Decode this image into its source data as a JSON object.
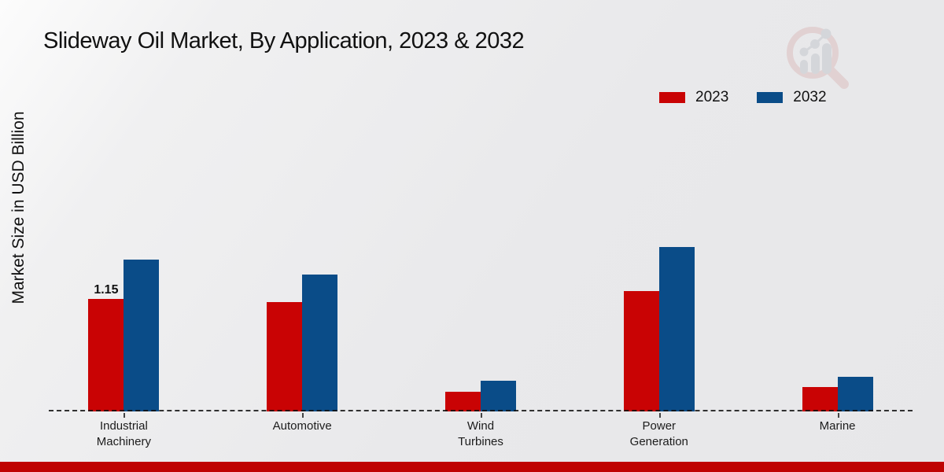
{
  "header": {
    "title": "Slideway Oil Market, By Application, 2023 & 2032"
  },
  "colors": {
    "series_2023": "#c90304",
    "series_2032": "#0a4c88",
    "footer_strip": "#bf0302",
    "axis_line": "#1a1a1a",
    "background": "#e9e9eb"
  },
  "watermark": {
    "icon": "magnifier-bar-chart-logo"
  },
  "chart_data": {
    "type": "bar",
    "title": "Slideway Oil Market, By Application, 2023 & 2032",
    "xlabel": "",
    "ylabel": "Market Size in USD Billion",
    "categories": [
      "Industrial Machinery",
      "Automotive",
      "Wind Turbines",
      "Power Generation",
      "Marine"
    ],
    "series": [
      {
        "name": "2023",
        "color": "#c90304",
        "values": [
          1.15,
          1.12,
          0.2,
          1.23,
          0.25
        ]
      },
      {
        "name": "2032",
        "color": "#0a4c88",
        "values": [
          1.55,
          1.4,
          0.31,
          1.68,
          0.35
        ]
      }
    ],
    "data_labels": [
      {
        "series": "2023",
        "category_index": 0,
        "text": "1.15"
      }
    ],
    "legend": {
      "position": "top-right",
      "entries": [
        "2023",
        "2032"
      ]
    },
    "axis": {
      "baseline_style": "dashed",
      "grid": false,
      "y_tick_labels": "none",
      "ylim": [
        0,
        1.77
      ]
    }
  }
}
